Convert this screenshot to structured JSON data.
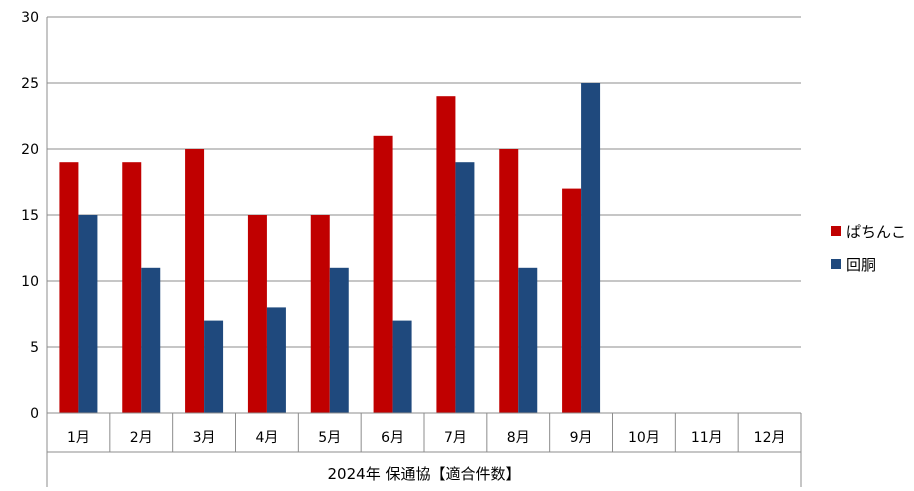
{
  "chart_data": {
    "type": "bar",
    "title": "",
    "xlabel": "2024年 保通協【適合件数】",
    "ylabel": "",
    "ylim": [
      0,
      30
    ],
    "yticks": [
      0,
      5,
      10,
      15,
      20,
      25,
      30
    ],
    "grid": true,
    "legend_position": "right",
    "categories": [
      "1月",
      "2月",
      "3月",
      "4月",
      "5月",
      "6月",
      "7月",
      "8月",
      "9月",
      "10月",
      "11月",
      "12月"
    ],
    "series": [
      {
        "name": "ぱちんこ",
        "color": "#c00000",
        "values": [
          19,
          19,
          20,
          15,
          15,
          21,
          24,
          20,
          17,
          null,
          null,
          null
        ]
      },
      {
        "name": "回胴",
        "color": "#1f497d",
        "values": [
          15,
          11,
          7,
          8,
          11,
          7,
          19,
          11,
          25,
          null,
          null,
          null
        ]
      }
    ]
  }
}
